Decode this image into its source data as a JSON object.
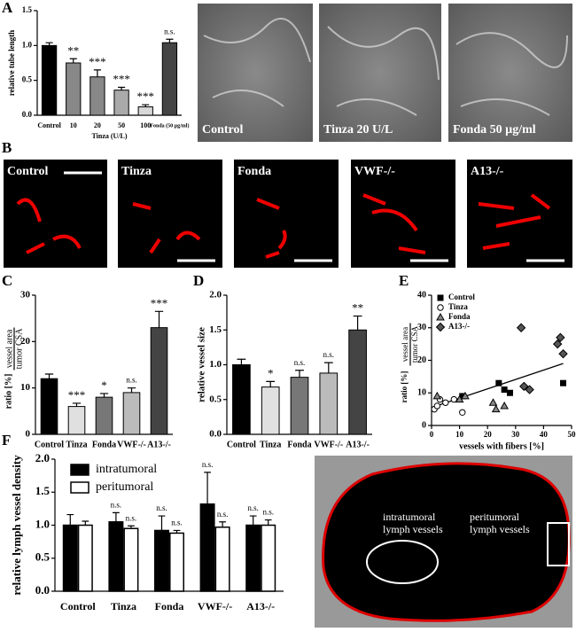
{
  "panel_letters": [
    "A",
    "B",
    "C",
    "D",
    "E",
    "F"
  ],
  "images": {
    "a_labels": [
      "Control",
      "Tinza 20 U/L",
      "Fonda 50 µg/ml"
    ],
    "b_labels": [
      "Control",
      "Tinza",
      "Fonda",
      "VWF-/-",
      "A13-/-"
    ],
    "f_labels": {
      "intratumoral": "intratumoral lymph vessels",
      "peritumoral": "peritumoral lymph vessels"
    }
  },
  "chart_data": [
    {
      "type": "bar",
      "ylabel": "relative tube length",
      "xlabel": "Tinza (U/L)",
      "categories": [
        "Control",
        "10",
        "20",
        "50",
        "100",
        "Fonda (50 µg/ml)"
      ],
      "values": [
        1.0,
        0.75,
        0.55,
        0.36,
        0.12,
        1.04
      ],
      "errors": [
        0.04,
        0.06,
        0.1,
        0.04,
        0.03,
        0.05
      ],
      "colors": [
        "#000000",
        "#888888",
        "#888888",
        "#aaaaaa",
        "#d8d8d8",
        "#444444"
      ],
      "annotations": [
        null,
        "**",
        "***",
        "***",
        "***",
        "n.s."
      ],
      "ylim": [
        0,
        1.5
      ],
      "yticks": [
        {
          "value": 0,
          "label": "0.0"
        },
        0.5,
        {
          "value": 1,
          "label": "1.0"
        },
        1.5
      ]
    },
    {
      "type": "bar",
      "ylabel": "ratio [%]",
      "ylabel_fraction": [
        "vessel area",
        "tumor CSA"
      ],
      "categories": [
        "Control",
        "Tinza",
        "Fonda",
        "VWF-/-",
        "A13-/-"
      ],
      "values": [
        12,
        6,
        8,
        9,
        23
      ],
      "errors": [
        1,
        0.7,
        0.8,
        1,
        3.5
      ],
      "colors": [
        "#000000",
        "#e0e0e0",
        "#777777",
        "#bbbbbb",
        "#444444"
      ],
      "annotations": [
        null,
        "***",
        "*",
        "n.s.",
        "***"
      ],
      "ylim": [
        0,
        30
      ],
      "yticks": [
        0,
        10,
        20,
        30
      ]
    },
    {
      "type": "bar",
      "ylabel": "relative vessel size",
      "categories": [
        "Control",
        "Tinza",
        "Fonda",
        "VWF-/-",
        "A13-/-"
      ],
      "values": [
        1.0,
        0.68,
        0.82,
        0.88,
        1.5
      ],
      "errors": [
        0.08,
        0.08,
        0.1,
        0.15,
        0.2
      ],
      "colors": [
        "#000000",
        "#e0e0e0",
        "#777777",
        "#bbbbbb",
        "#444444"
      ],
      "annotations": [
        null,
        "*",
        "n.s.",
        "n.s.",
        "**"
      ],
      "ylim": [
        0,
        2
      ],
      "yticks": [
        {
          "value": 0,
          "label": "0.0"
        },
        0.5,
        {
          "value": 1,
          "label": "1.0"
        },
        1.5,
        {
          "value": 2,
          "label": "2.0"
        }
      ]
    },
    {
      "type": "scatter",
      "ylabel": "ratio [%]",
      "ylabel_fraction": [
        "vessel area",
        "tumor CSA"
      ],
      "xlabel": "vessels with fibers [%]",
      "series": [
        {
          "name": "Control",
          "marker": "square",
          "color": "#000000",
          "x": [
            11,
            24,
            26,
            28,
            47
          ],
          "values": [
            9,
            13,
            11,
            10,
            13
          ]
        },
        {
          "name": "Tinza",
          "marker": "circle",
          "color": "#ffffff",
          "x": [
            1,
            2,
            3,
            5,
            8,
            11
          ],
          "values": [
            5,
            6,
            8,
            7,
            8,
            4
          ]
        },
        {
          "name": "Fonda",
          "marker": "triangle",
          "color": "#888888",
          "x": [
            2,
            10,
            12,
            22,
            23,
            26
          ],
          "values": [
            9,
            8,
            9,
            7,
            5,
            6
          ]
        },
        {
          "name": "A13-/-",
          "marker": "diamond",
          "color": "#555555",
          "x": [
            32,
            33,
            35,
            45,
            46,
            47
          ],
          "values": [
            30,
            12,
            11,
            25,
            27,
            22
          ]
        }
      ],
      "trend_line": {
        "x": [
          0,
          47
        ],
        "values": [
          5.5,
          19
        ]
      },
      "xlim": [
        0,
        50
      ],
      "xticks": [
        0,
        10,
        20,
        30,
        40,
        50
      ],
      "ylim": [
        0,
        40
      ],
      "yticks": [
        0,
        10,
        20,
        30,
        40
      ]
    },
    {
      "type": "grouped_bar",
      "ylabel": "relative lymph vessel density",
      "categories": [
        "Control",
        "Tinza",
        "Fonda",
        "VWF-/-",
        "A13-/-"
      ],
      "series": [
        {
          "name": "intratumoral",
          "color": "#000000",
          "values": [
            1.0,
            1.05,
            0.92,
            1.32,
            1.0
          ],
          "errors": [
            0.16,
            0.14,
            0.22,
            0.48,
            0.14
          ],
          "annotations": [
            null,
            "n.s.",
            "n.s.",
            "n.s.",
            "n.s."
          ]
        },
        {
          "name": "peritumoral",
          "color": "#ffffff",
          "values": [
            1.0,
            0.95,
            0.88,
            0.97,
            1.0
          ],
          "errors": [
            0.06,
            0.04,
            0.04,
            0.08,
            0.08
          ],
          "annotations": [
            null,
            "n.s.",
            "n.s.",
            "n.s.",
            "n.s."
          ]
        }
      ],
      "legend": "upper left",
      "ylim": [
        0,
        2
      ],
      "yticks": [
        {
          "value": 0,
          "label": "0.0"
        },
        0.5,
        {
          "value": 1,
          "label": "1.0"
        },
        1.5,
        {
          "value": 2,
          "label": "2.0"
        }
      ]
    }
  ]
}
